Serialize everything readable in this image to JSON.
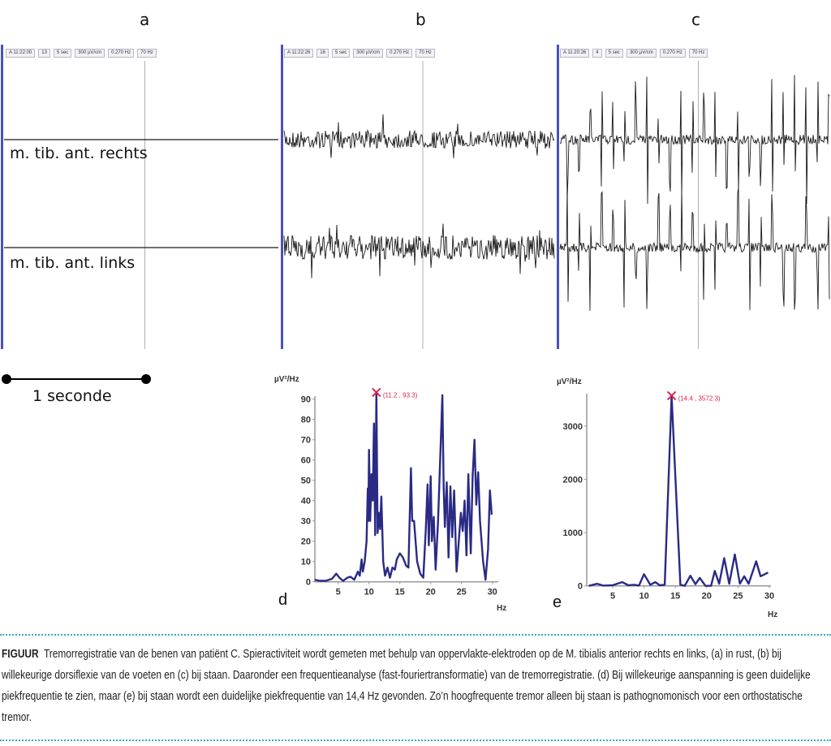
{
  "panels": [
    {
      "letter": "a",
      "header": [
        "A 11:22:00",
        "13",
        "5 sec",
        "300 µV/cm",
        "0.270 Hz",
        "70 Hz"
      ],
      "channels": [
        "m. tib. ant. rechts",
        "m. tib. ant. links"
      ]
    },
    {
      "letter": "b",
      "header": [
        "A 11:22:26",
        "16",
        "5 sec",
        "300 µV/cm",
        "0.270 Hz",
        "70 Hz"
      ]
    },
    {
      "letter": "c",
      "header": [
        "A 11:20:26",
        "4",
        "5 sec",
        "300 µV/cm",
        "0.270 Hz",
        "70 Hz"
      ]
    }
  ],
  "scale_bar": {
    "label": "1 seconde",
    "value_seconds": 1
  },
  "colors": {
    "trace": "#1a1a1a",
    "panel_border": "#4a52b8",
    "spectrum": "#2a2a86",
    "peak_marker": "#e0204a",
    "divider": "#3aa6c8"
  },
  "chart_data": [
    {
      "type": "line",
      "panel_label": "d",
      "ylabel": "µV²/Hz",
      "xlabel": "Hz",
      "xlim": [
        1.2,
        30
      ],
      "ylim": [
        0,
        92
      ],
      "xticks": [
        5,
        10,
        15,
        20,
        25,
        30
      ],
      "yticks": [
        0,
        10,
        20,
        30,
        40,
        50,
        60,
        70,
        80,
        90
      ],
      "grid": false,
      "peak": {
        "x": 11.2,
        "y": 93.3,
        "label": "(11.2 , 93.3)"
      },
      "points": [
        [
          1.2,
          1
        ],
        [
          2,
          0.5
        ],
        [
          3,
          0.5
        ],
        [
          4,
          1.5
        ],
        [
          4.7,
          4
        ],
        [
          5.2,
          2
        ],
        [
          5.8,
          0.5
        ],
        [
          6.5,
          2
        ],
        [
          7,
          2.5
        ],
        [
          7.6,
          1
        ],
        [
          8.2,
          5
        ],
        [
          8.5,
          3
        ],
        [
          8.8,
          11
        ],
        [
          9,
          5
        ],
        [
          9.3,
          10
        ],
        [
          9.6,
          20
        ],
        [
          9.8,
          46
        ],
        [
          9.9,
          30
        ],
        [
          10,
          65
        ],
        [
          10.2,
          30
        ],
        [
          10.4,
          53
        ],
        [
          10.6,
          40
        ],
        [
          10.8,
          78
        ],
        [
          11,
          23
        ],
        [
          11.2,
          93.3
        ],
        [
          11.4,
          24
        ],
        [
          11.6,
          34
        ],
        [
          11.8,
          26
        ],
        [
          12,
          42
        ],
        [
          12.3,
          10
        ],
        [
          12.6,
          3
        ],
        [
          13,
          7
        ],
        [
          13.4,
          2
        ],
        [
          13.8,
          7
        ],
        [
          14.2,
          6
        ],
        [
          14.5,
          11
        ],
        [
          15,
          14
        ],
        [
          15.5,
          12
        ],
        [
          16,
          8
        ],
        [
          16.4,
          7
        ],
        [
          16.8,
          56
        ],
        [
          17,
          30
        ],
        [
          17.3,
          30
        ],
        [
          17.8,
          10
        ],
        [
          18.3,
          4
        ],
        [
          18.8,
          2
        ],
        [
          19.2,
          25
        ],
        [
          19.5,
          48
        ],
        [
          19.7,
          18
        ],
        [
          20,
          52
        ],
        [
          20.2,
          20
        ],
        [
          20.5,
          32
        ],
        [
          20.8,
          6
        ],
        [
          21.2,
          30
        ],
        [
          21.6,
          66
        ],
        [
          21.9,
          92
        ],
        [
          22.1,
          47
        ],
        [
          22.3,
          27
        ],
        [
          22.6,
          49
        ],
        [
          22.9,
          12
        ],
        [
          23.2,
          47
        ],
        [
          23.5,
          22
        ],
        [
          23.8,
          45
        ],
        [
          24.2,
          5
        ],
        [
          24.6,
          22
        ],
        [
          24.9,
          34
        ],
        [
          25.2,
          25
        ],
        [
          25.5,
          40
        ],
        [
          25.8,
          13
        ],
        [
          26.1,
          53
        ],
        [
          26.5,
          14
        ],
        [
          26.8,
          52
        ],
        [
          27.1,
          70
        ],
        [
          27.4,
          38
        ],
        [
          27.7,
          54
        ],
        [
          28,
          30
        ],
        [
          28.5,
          10
        ],
        [
          28.9,
          1
        ],
        [
          29.3,
          16
        ],
        [
          29.6,
          45
        ],
        [
          29.9,
          33
        ]
      ]
    },
    {
      "type": "line",
      "panel_label": "e",
      "ylabel": "µV²/Hz",
      "xlabel": "Hz",
      "xlim": [
        1.2,
        30
      ],
      "ylim": [
        0,
        3600
      ],
      "xticks": [
        5,
        10,
        15,
        20,
        25,
        30
      ],
      "yticks": [
        0,
        1000,
        2000,
        3000
      ],
      "grid": false,
      "peak": {
        "x": 14.4,
        "y": 3572.3,
        "label": "(14.4 , 3572.3)"
      },
      "points": [
        [
          1.2,
          0
        ],
        [
          2.5,
          40
        ],
        [
          3.5,
          5
        ],
        [
          5,
          10
        ],
        [
          6.5,
          70
        ],
        [
          7.5,
          10
        ],
        [
          8.5,
          20
        ],
        [
          9.2,
          5
        ],
        [
          10,
          220
        ],
        [
          11,
          20
        ],
        [
          11.8,
          70
        ],
        [
          12.5,
          10
        ],
        [
          13.3,
          20
        ],
        [
          14.4,
          3572.3
        ],
        [
          15.8,
          20
        ],
        [
          16.5,
          0
        ],
        [
          17.4,
          190
        ],
        [
          18.2,
          30
        ],
        [
          18.9,
          150
        ],
        [
          19.8,
          0
        ],
        [
          20.7,
          0
        ],
        [
          21.3,
          280
        ],
        [
          22,
          40
        ],
        [
          22.8,
          520
        ],
        [
          23.6,
          40
        ],
        [
          24.5,
          590
        ],
        [
          25.3,
          40
        ],
        [
          26,
          180
        ],
        [
          26.7,
          40
        ],
        [
          27.9,
          460
        ],
        [
          28.6,
          180
        ],
        [
          29.8,
          250
        ]
      ]
    }
  ],
  "caption": {
    "label": "FIGUUR",
    "text": "Tremorregistratie van de benen van patiënt C. Spieractiviteit wordt gemeten met behulp van oppervlakte-elektroden op de M. tibialis anterior rechts en links, (a) in rust, (b) bij willekeurige dorsiflexie van de voeten en (c) bij staan. Daaronder een frequentieanalyse (fast-fouriertransformatie) van de tremorregistratie. (d) Bij willekeurige aanspanning is geen duidelijke piekfrequentie te zien, maar (e) bij staan wordt een duidelijke piekfrequentie van 14,4 Hz gevonden. Zo’n hoogfrequente tremor alleen bij staan is pathognomonisch voor een orthostatische tremor."
  }
}
